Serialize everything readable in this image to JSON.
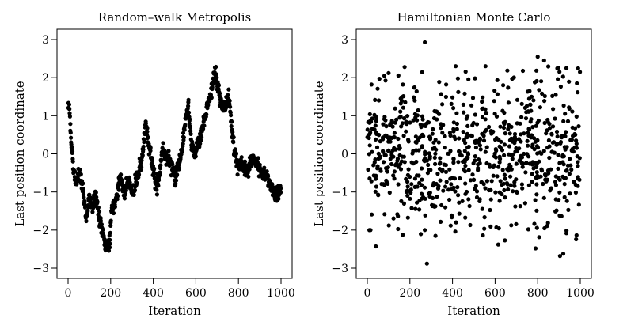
{
  "chart_data": [
    {
      "type": "scatter",
      "title": "Random–walk Metropolis",
      "xlabel": "Iteration",
      "ylabel": "Last position coordinate",
      "xlim": [
        0,
        1000
      ],
      "ylim": [
        -3,
        3
      ],
      "xticks": [
        "0",
        "200",
        "400",
        "600",
        "800",
        "1000"
      ],
      "yticks": [
        "−3",
        "−2",
        "−1",
        "0",
        "1",
        "2",
        "3"
      ],
      "grid": false,
      "anchors": [
        [
          0,
          1.0
        ],
        [
          5,
          1.35
        ],
        [
          12,
          0.5
        ],
        [
          25,
          -0.4
        ],
        [
          40,
          -0.75
        ],
        [
          55,
          -0.55
        ],
        [
          70,
          -0.9
        ],
        [
          85,
          -1.75
        ],
        [
          100,
          -1.1
        ],
        [
          115,
          -1.4
        ],
        [
          130,
          -1.05
        ],
        [
          150,
          -1.8
        ],
        [
          165,
          -2.2
        ],
        [
          180,
          -2.5
        ],
        [
          195,
          -2.3
        ],
        [
          205,
          -1.5
        ],
        [
          225,
          -1.2
        ],
        [
          245,
          -0.6
        ],
        [
          265,
          -1.0
        ],
        [
          285,
          -0.7
        ],
        [
          305,
          -1.05
        ],
        [
          325,
          -0.6
        ],
        [
          345,
          -0.2
        ],
        [
          365,
          0.8
        ],
        [
          380,
          0.2
        ],
        [
          395,
          -0.3
        ],
        [
          415,
          -0.9
        ],
        [
          430,
          -0.5
        ],
        [
          445,
          0.2
        ],
        [
          460,
          -0.2
        ],
        [
          475,
          -0.1
        ],
        [
          490,
          -0.4
        ],
        [
          505,
          -0.65
        ],
        [
          520,
          -0.25
        ],
        [
          535,
          0.1
        ],
        [
          550,
          0.9
        ],
        [
          565,
          1.2
        ],
        [
          580,
          0.3
        ],
        [
          595,
          0.0
        ],
        [
          610,
          0.35
        ],
        [
          625,
          0.5
        ],
        [
          640,
          0.9
        ],
        [
          655,
          1.3
        ],
        [
          670,
          1.55
        ],
        [
          690,
          2.2
        ],
        [
          705,
          1.7
        ],
        [
          720,
          1.3
        ],
        [
          740,
          1.2
        ],
        [
          755,
          1.5
        ],
        [
          770,
          0.6
        ],
        [
          780,
          0.15
        ],
        [
          795,
          -0.3
        ],
        [
          810,
          -0.2
        ],
        [
          825,
          -0.35
        ],
        [
          840,
          -0.5
        ],
        [
          855,
          -0.25
        ],
        [
          870,
          -0.1
        ],
        [
          885,
          -0.25
        ],
        [
          900,
          -0.35
        ],
        [
          915,
          -0.55
        ],
        [
          930,
          -0.55
        ],
        [
          945,
          -0.8
        ],
        [
          960,
          -0.95
        ],
        [
          975,
          -1.1
        ],
        [
          990,
          -1.0
        ],
        [
          1000,
          -0.85
        ]
      ]
    },
    {
      "type": "scatter",
      "title": "Hamiltonian Monte Carlo",
      "xlabel": "Iteration",
      "ylabel": "Last position coordinate",
      "xlim": [
        0,
        1000
      ],
      "ylim": [
        -3,
        3
      ],
      "xticks": [
        "0",
        "200",
        "400",
        "600",
        "800",
        "1000"
      ],
      "yticks": [
        "−3",
        "−2",
        "−1",
        "0",
        "1",
        "2",
        "3"
      ],
      "grid": false,
      "sd": 0.95,
      "points": [
        [
          270,
          2.93
        ],
        [
          280,
          -2.88
        ],
        [
          800,
          2.55
        ],
        [
          830,
          2.45
        ],
        [
          905,
          -2.68
        ],
        [
          920,
          -2.62
        ],
        [
          790,
          -2.48
        ],
        [
          40,
          -2.43
        ],
        [
          615,
          -2.38
        ],
        [
          320,
          -2.15
        ],
        [
          415,
          2.3
        ],
        [
          555,
          2.3
        ],
        [
          175,
          2.28
        ],
        [
          935,
          2.25
        ],
        [
          100,
          2.12
        ],
        [
          80,
          2.05
        ],
        [
          15,
          -2.0
        ],
        [
          270,
          -2.0
        ]
      ]
    }
  ]
}
